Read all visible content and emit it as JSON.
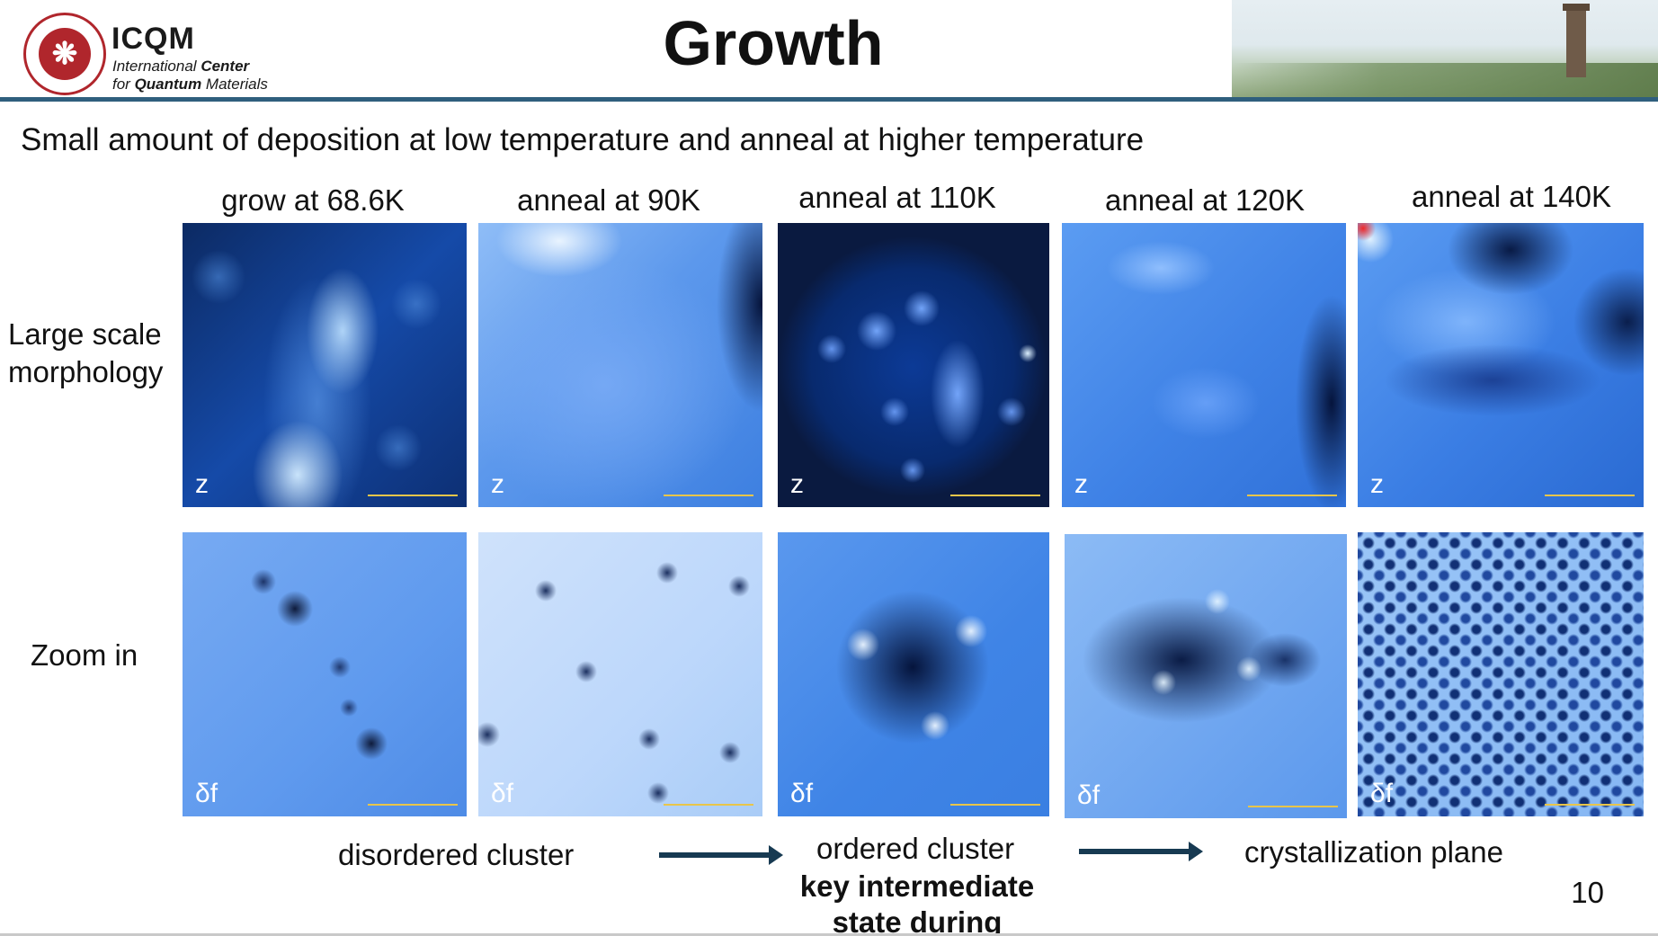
{
  "header": {
    "logo_short": "ICQM",
    "logo_line1_a": "International",
    "logo_line1_b": "Center",
    "logo_line2_a": "for",
    "logo_line2_b": "Quantum",
    "logo_line2_c": "Materials",
    "title": "Growth"
  },
  "subtitle": "Small amount of deposition at low temperature and anneal at higher temperature",
  "columns": [
    {
      "label": "grow at 68.6K"
    },
    {
      "label": "anneal at 90K"
    },
    {
      "label": "anneal at 110K"
    },
    {
      "label": "anneal at 120K"
    },
    {
      "label": "anneal at 140K"
    }
  ],
  "rows": [
    {
      "label_line1": "Large scale",
      "label_line2": "morphology",
      "channel": "z"
    },
    {
      "label_line1": "Zoom in",
      "label_line2": "",
      "channel": "δf"
    }
  ],
  "captions": {
    "disordered": "disordered cluster",
    "ordered": "ordered cluster",
    "key_line1": "key intermediate",
    "key_line2": "state during",
    "crystallization": "crystallization plane"
  },
  "page_number": "10",
  "colors": {
    "accent_rule": "#2f5f7d",
    "arrow": "#173a52",
    "logo_red": "#b0262c",
    "scalebar": "#e8c54a"
  }
}
